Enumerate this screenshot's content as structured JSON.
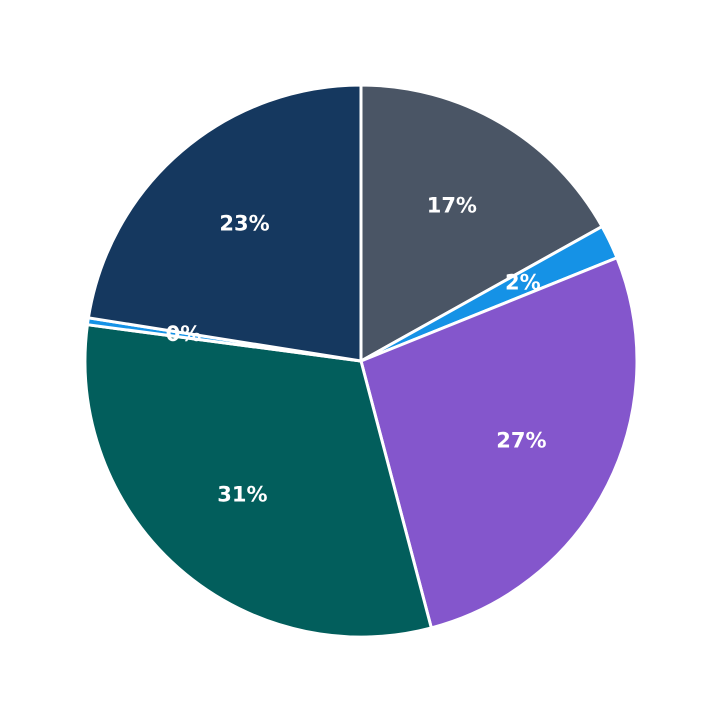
{
  "chart_data": {
    "type": "pie",
    "values": [
      16.9,
      2,
      27,
      31.2,
      0.4,
      22.5
    ],
    "value_labels": [
      "17%",
      "2%",
      "27%",
      "31%",
      "0%",
      "23%"
    ],
    "colors": [
      "#4a5565",
      "#1592e6",
      "#8456cc",
      "#025e5c",
      "#1592e6",
      "#15385f"
    ]
  }
}
